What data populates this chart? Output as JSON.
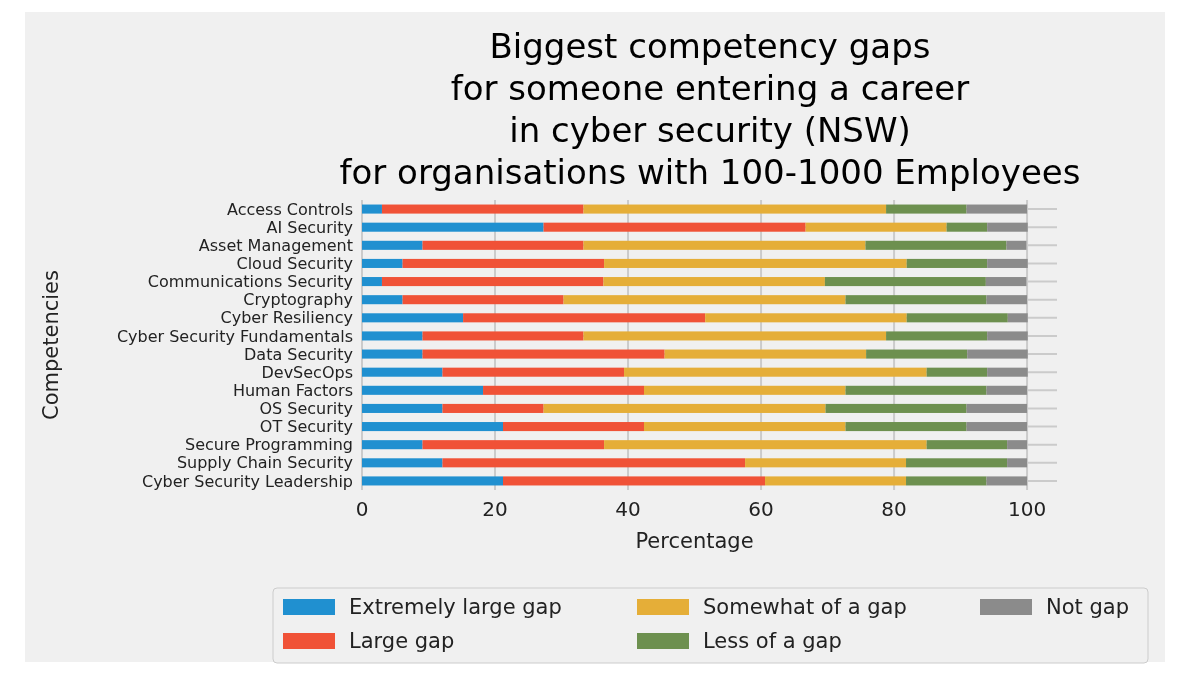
{
  "chart_data": {
    "type": "bar",
    "orientation": "horizontal",
    "stacked": true,
    "title": "Biggest competency gaps\nfor someone entering a career\nin cyber security (NSW)\nfor organisations with 100-1000 Employees",
    "xlabel": "Percentage",
    "ylabel": "Competencies",
    "categories": [
      "Access Controls",
      "AI Security",
      "Asset Management",
      "Cloud Security",
      "Communications Security",
      "Cryptography",
      "Cyber Resiliency",
      "Cyber Security Fundamentals",
      "Data Security",
      "DevSecOps",
      "Human Factors",
      "OS Security",
      "OT Security",
      "Secure Programming",
      "Supply Chain Security",
      "Cyber Security Leadership"
    ],
    "series": [
      {
        "name": "Extremely large gap",
        "color": "#2090d0",
        "values": [
          3.0,
          27.3,
          9.1,
          6.1,
          3.0,
          6.1,
          15.2,
          9.1,
          9.1,
          12.1,
          18.2,
          12.1,
          21.2,
          9.1,
          12.1,
          21.2
        ]
      },
      {
        "name": "Large gap",
        "color": "#f05237",
        "values": [
          30.3,
          39.4,
          24.2,
          30.3,
          33.3,
          24.2,
          36.4,
          24.2,
          36.4,
          27.3,
          24.2,
          15.2,
          21.2,
          27.3,
          45.5,
          39.4
        ]
      },
      {
        "name": "Somewhat of a gap",
        "color": "#e5ae38",
        "values": [
          45.5,
          21.2,
          42.4,
          45.5,
          33.3,
          42.4,
          30.3,
          45.5,
          30.3,
          45.5,
          30.3,
          42.4,
          30.3,
          48.5,
          24.2,
          21.2
        ]
      },
      {
        "name": "Less of a gap",
        "color": "#6d904f",
        "values": [
          12.1,
          6.1,
          21.2,
          12.1,
          24.2,
          21.2,
          15.2,
          15.2,
          15.2,
          9.1,
          21.2,
          21.2,
          18.2,
          12.1,
          15.2,
          12.1
        ]
      },
      {
        "name": "Not gap",
        "color": "#8b8b8b",
        "values": [
          9.1,
          6.1,
          3.0,
          6.1,
          6.1,
          6.1,
          3.0,
          6.1,
          9.1,
          6.1,
          6.1,
          9.1,
          9.1,
          3.0,
          3.0,
          6.1
        ]
      }
    ],
    "xlim": [
      0,
      104.5
    ],
    "xticks": [
      0,
      20,
      40,
      60,
      80,
      100
    ],
    "grid": true,
    "legend": "bottom"
  }
}
